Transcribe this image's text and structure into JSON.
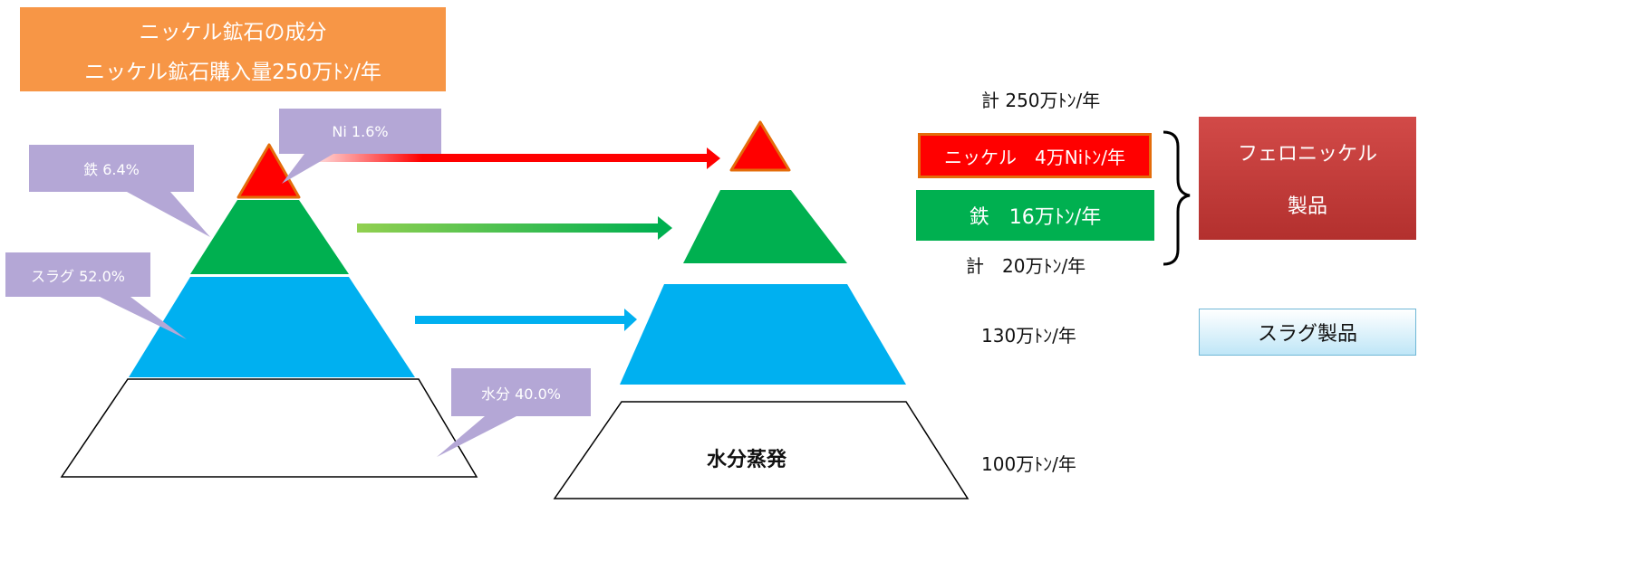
{
  "title": {
    "line1": "ニッケル鉱石の成分",
    "line2": "ニッケル鉱石購入量250万ﾄﾝ/年"
  },
  "callouts": {
    "ni": "Ni 1.6%",
    "iron": "鉄 6.4%",
    "slag": "スラグ 52.0%",
    "water": "水分 40.0%"
  },
  "right_pyramid": {
    "water_label": "水分蒸発"
  },
  "outputs": {
    "total_top": "計 250万ﾄﾝ/年",
    "nickel": "ニッケル　4万Niﾄﾝ/年",
    "iron": "鉄　16万ﾄﾝ/年",
    "total_metal": "計　20万ﾄﾝ/年",
    "slag": "130万ﾄﾝ/年",
    "water": "100万ﾄﾝ/年"
  },
  "products": {
    "ferronickel_line1": "フェロニッケル",
    "ferronickel_line2": "製品",
    "slag": "スラグ製品"
  },
  "colors": {
    "orange": "#f79646",
    "red": "#ff0000",
    "red_border": "#e46c0a",
    "green": "#00b050",
    "blue": "#00b0f0",
    "callout": "#b4a7d6"
  }
}
